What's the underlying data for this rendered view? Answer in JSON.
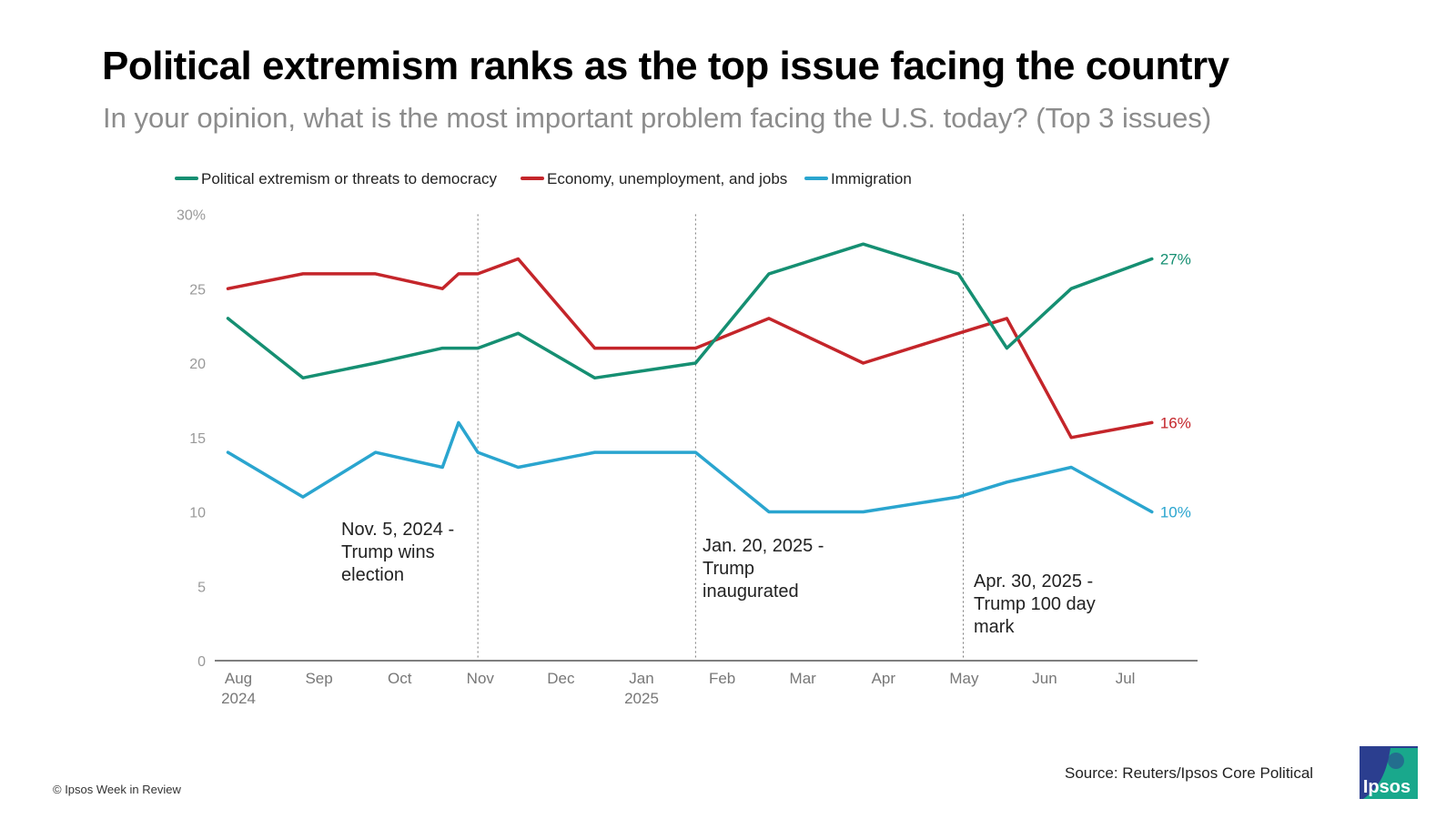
{
  "title": "Political extremism ranks as the top issue facing the country",
  "subtitle": "In your opinion, what is the most important problem facing the U.S. today? (Top 3 issues)",
  "footer": "© Ipsos Week in Review",
  "source": "Source: Reuters/Ipsos Core Political",
  "logo_text": "Ipsos",
  "colors": {
    "political": "#158f72",
    "economy": "#c4252a",
    "immigration": "#2aa5cf"
  },
  "chart_data": {
    "type": "line",
    "x_unit": "months since Aug 2024",
    "ylim": [
      0,
      30
    ],
    "yticks": [
      {
        "value": 0,
        "label": "0"
      },
      {
        "value": 5,
        "label": "5"
      },
      {
        "value": 10,
        "label": "10"
      },
      {
        "value": 15,
        "label": "15"
      },
      {
        "value": 20,
        "label": "20"
      },
      {
        "value": 25,
        "label": "25"
      },
      {
        "value": 30,
        "label": "30%"
      }
    ],
    "xticks": [
      {
        "value": 0,
        "label": "Aug",
        "sub": "2024"
      },
      {
        "value": 1,
        "label": "Sep",
        "sub": ""
      },
      {
        "value": 2,
        "label": "Oct",
        "sub": ""
      },
      {
        "value": 3,
        "label": "Nov",
        "sub": ""
      },
      {
        "value": 4,
        "label": "Dec",
        "sub": ""
      },
      {
        "value": 5,
        "label": "Jan",
        "sub": "2025"
      },
      {
        "value": 6,
        "label": "Feb",
        "sub": ""
      },
      {
        "value": 7,
        "label": "Mar",
        "sub": ""
      },
      {
        "value": 8,
        "label": "Apr",
        "sub": ""
      },
      {
        "value": 9,
        "label": "May",
        "sub": ""
      },
      {
        "value": 10,
        "label": "Jun",
        "sub": ""
      },
      {
        "value": 11,
        "label": "Jul",
        "sub": ""
      }
    ],
    "legend_position": "top",
    "grid": false,
    "series": [
      {
        "key": "political",
        "name": "Political extremism or threats to democracy",
        "end_label": "27%",
        "points": [
          [
            -0.13,
            23
          ],
          [
            0.8,
            19
          ],
          [
            1.7,
            20
          ],
          [
            2.53,
            21
          ],
          [
            2.97,
            21
          ],
          [
            3.47,
            22
          ],
          [
            4.42,
            19
          ],
          [
            5.67,
            20
          ],
          [
            6.58,
            26
          ],
          [
            7.75,
            28
          ],
          [
            8.93,
            26
          ],
          [
            9.53,
            21
          ],
          [
            10.33,
            25
          ],
          [
            11.33,
            27
          ]
        ]
      },
      {
        "key": "economy",
        "name": "Economy, unemployment, and jobs",
        "end_label": "16%",
        "points": [
          [
            -0.13,
            25
          ],
          [
            0.8,
            26
          ],
          [
            1.7,
            26
          ],
          [
            2.53,
            25
          ],
          [
            2.73,
            26
          ],
          [
            2.97,
            26
          ],
          [
            3.47,
            27
          ],
          [
            4.42,
            21
          ],
          [
            5.67,
            21
          ],
          [
            6.58,
            23
          ],
          [
            7.75,
            20
          ],
          [
            8.93,
            22
          ],
          [
            9.53,
            23
          ],
          [
            10.33,
            15
          ],
          [
            11.33,
            16
          ]
        ]
      },
      {
        "key": "immigration",
        "name": "Immigration",
        "end_label": "10%",
        "points": [
          [
            -0.13,
            14
          ],
          [
            0.8,
            11
          ],
          [
            1.7,
            14
          ],
          [
            2.53,
            13
          ],
          [
            2.73,
            16
          ],
          [
            2.97,
            14
          ],
          [
            3.47,
            13
          ],
          [
            4.42,
            14
          ],
          [
            5.67,
            14
          ],
          [
            6.58,
            10
          ],
          [
            7.75,
            10
          ],
          [
            8.93,
            11
          ],
          [
            9.53,
            12
          ],
          [
            10.33,
            13
          ],
          [
            11.33,
            10
          ]
        ]
      }
    ],
    "annotations": [
      {
        "x": 2.97,
        "lines": [
          "Nov. 5, 2024 -",
          "Trump wins",
          "election"
        ]
      },
      {
        "x": 5.67,
        "lines": [
          "Jan. 20, 2025 -",
          "Trump",
          "inaugurated"
        ]
      },
      {
        "x": 8.99,
        "lines": [
          "Apr. 30, 2025 -",
          "Trump 100 day",
          "mark"
        ]
      }
    ]
  }
}
